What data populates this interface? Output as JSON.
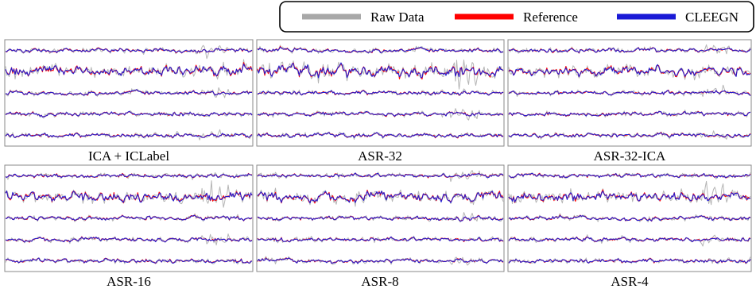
{
  "chart_data": {
    "type": "line",
    "signal": "EEG",
    "channels_per_panel": 5,
    "grid": false,
    "legend": {
      "placement": "top-right",
      "entries": [
        {
          "name": "Raw Data",
          "color": "#a8a8a8"
        },
        {
          "name": "Reference",
          "color": "#ff0000"
        },
        {
          "name": "CLEEGN",
          "color": "#1a1ad6"
        }
      ]
    },
    "panels": [
      {
        "title": "ICA + ICLabel"
      },
      {
        "title": "ASR-32"
      },
      {
        "title": "ASR-32-ICA"
      },
      {
        "title": "ASR-16"
      },
      {
        "title": "ASR-8"
      },
      {
        "title": "ASR-4"
      }
    ]
  }
}
